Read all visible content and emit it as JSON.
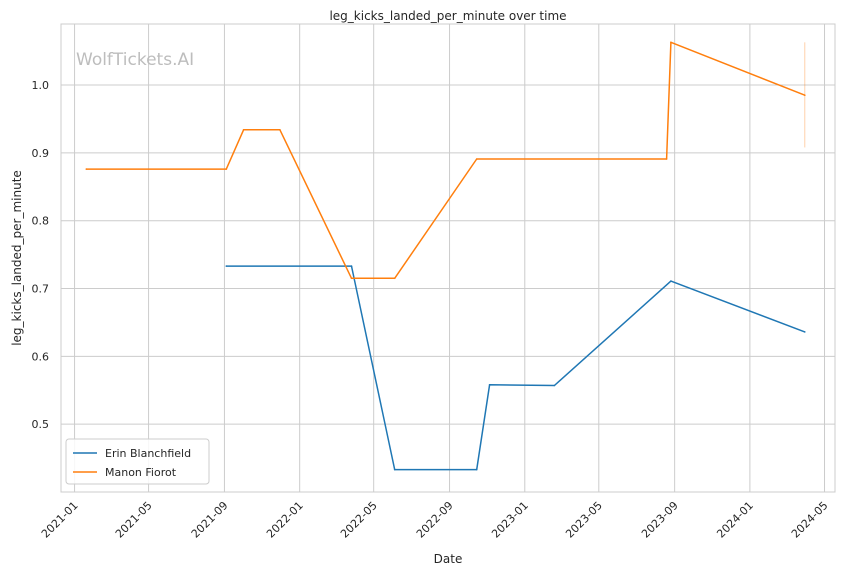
{
  "chart_data": {
    "type": "line",
    "title": "leg_kicks_landed_per_minute over time",
    "xlabel": "Date",
    "ylabel": "leg_kicks_landed_per_minute",
    "watermark": "WolfTickets.AI",
    "xlim": [
      "2020-12-10",
      "2024-05-18"
    ],
    "ylim": [
      0.4,
      1.09
    ],
    "xticks": [
      "2021-01",
      "2021-05",
      "2021-09",
      "2022-01",
      "2022-05",
      "2022-09",
      "2023-01",
      "2023-05",
      "2023-09",
      "2024-01",
      "2024-05"
    ],
    "yticks": [
      0.5,
      0.6,
      0.7,
      0.8,
      0.9,
      1.0
    ],
    "ytick_labels": [
      "0.5",
      "0.6",
      "0.7",
      "0.8",
      "0.9",
      "1.0"
    ],
    "grid": true,
    "legend_position": "lower-left",
    "series": [
      {
        "name": "Erin Blanchfield",
        "color": "#1f77b4",
        "points": [
          [
            "2021-09-04",
            0.733
          ],
          [
            "2022-03-26",
            0.733
          ],
          [
            "2022-06-04",
            0.433
          ],
          [
            "2022-10-15",
            0.433
          ],
          [
            "2022-11-05",
            0.558
          ],
          [
            "2023-02-18",
            0.557
          ],
          [
            "2023-08-26",
            0.711
          ],
          [
            "2024-03-30",
            0.636
          ]
        ]
      },
      {
        "name": "Manon Fiorot",
        "color": "#ff7f0e",
        "points": [
          [
            "2021-01-20",
            0.876
          ],
          [
            "2021-09-04",
            0.876
          ],
          [
            "2021-10-02",
            0.934
          ],
          [
            "2021-11-30",
            0.934
          ],
          [
            "2022-03-26",
            0.715
          ],
          [
            "2022-06-04",
            0.715
          ],
          [
            "2022-10-15",
            0.891
          ],
          [
            "2023-08-19",
            0.891
          ],
          [
            "2023-08-26",
            1.063
          ],
          [
            "2024-03-30",
            0.985
          ]
        ]
      }
    ],
    "annotations": [
      {
        "type": "vline",
        "x": "2024-03-30",
        "y_from": 0.908,
        "y_to": 1.063,
        "color": "#ff7f0e"
      }
    ]
  }
}
